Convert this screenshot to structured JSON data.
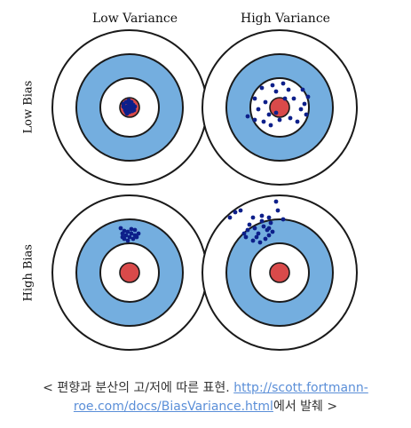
{
  "columns": [
    "Low Variance",
    "High Variance"
  ],
  "rows": [
    "Low Bias",
    "High Bias"
  ],
  "caption": {
    "prefix": "< 편향과 분산의 고/저에 따른 표현. ",
    "link_line1": "http://scott.fortmann-",
    "link_line2": "roe.com/docs/BiasVariance.html",
    "suffix": "에서 발췌 >"
  },
  "colors": {
    "ring_fill": "#ffffff",
    "ring_blue": "#74aedf",
    "bullseye": "#d94a4a",
    "stroke": "#1a1a1a",
    "dot": "#0d1f8a"
  },
  "targets": [
    {
      "name": "low-bias-low-variance",
      "row": 0,
      "col": 0
    },
    {
      "name": "low-bias-high-variance",
      "row": 0,
      "col": 1
    },
    {
      "name": "high-bias-low-variance",
      "row": 1,
      "col": 0
    },
    {
      "name": "high-bias-high-variance",
      "row": 1,
      "col": 1
    }
  ]
}
